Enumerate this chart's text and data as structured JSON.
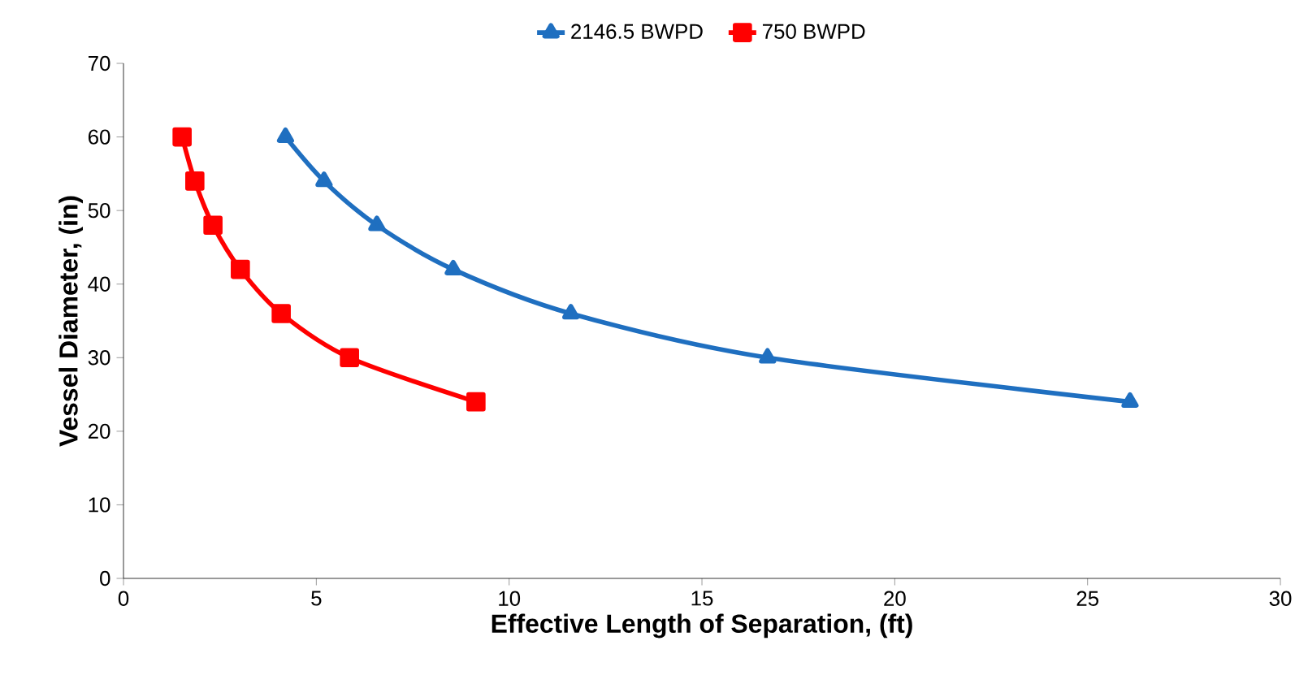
{
  "chart_data": {
    "type": "line",
    "xlabel": "Effective Length of Separation, (ft)",
    "ylabel": "Vessel Diameter, (in)",
    "xlim": [
      0,
      30
    ],
    "ylim": [
      0,
      70
    ],
    "xticks": [
      0,
      5,
      10,
      15,
      20,
      25,
      30
    ],
    "yticks": [
      0,
      10,
      20,
      30,
      40,
      50,
      60,
      70
    ],
    "legend": "top",
    "grid": false,
    "series": [
      {
        "name": "2146.5 BWPD",
        "color": "#1f6fc0",
        "marker": "triangle",
        "x": [
          4.2,
          5.2,
          6.57,
          8.55,
          11.6,
          16.7,
          26.1
        ],
        "values": [
          60,
          54,
          48,
          42,
          36,
          30,
          24
        ]
      },
      {
        "name": "750 BWPD",
        "color": "#ff0000",
        "marker": "square",
        "x": [
          1.52,
          1.85,
          2.32,
          3.03,
          4.09,
          5.86,
          9.14
        ],
        "values": [
          60,
          54,
          48,
          42,
          36,
          30,
          24
        ]
      }
    ]
  }
}
